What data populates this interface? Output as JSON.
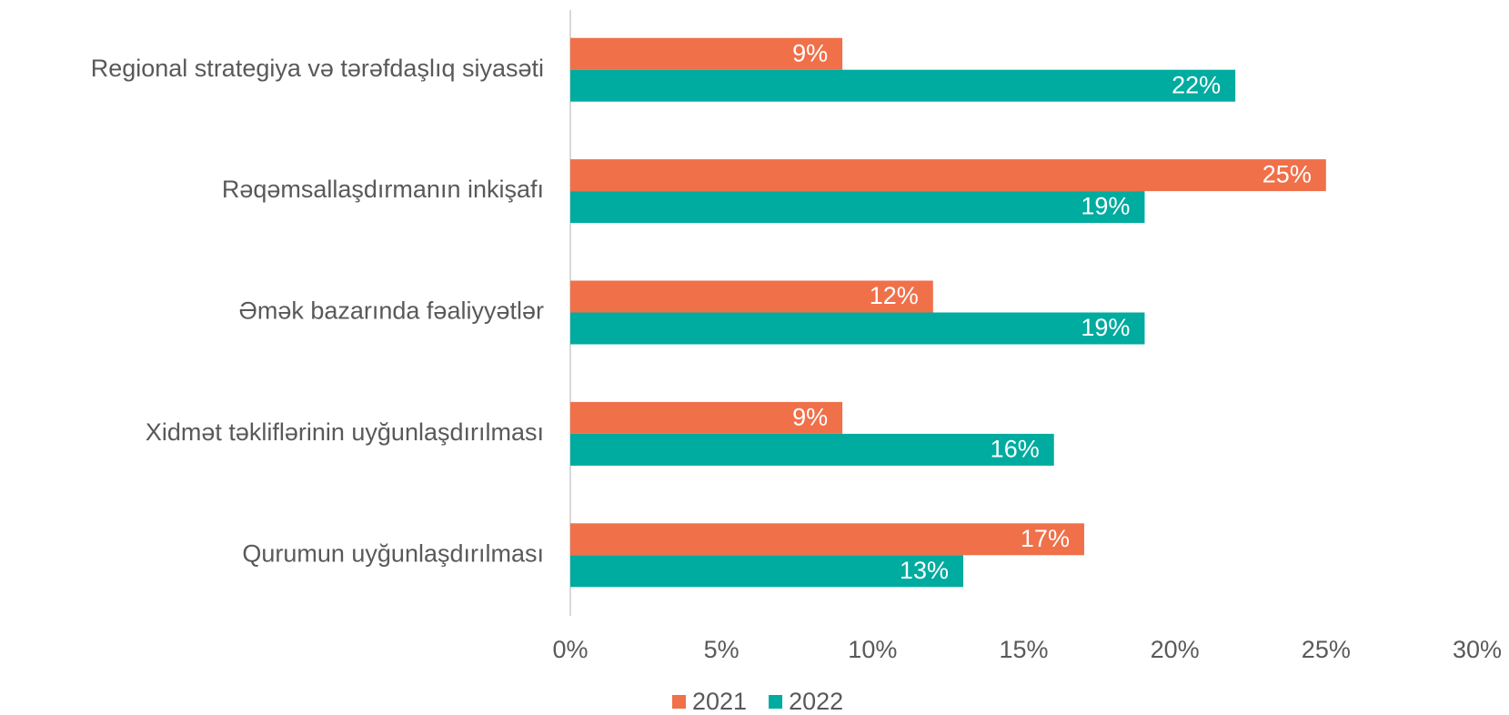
{
  "chart_data": {
    "type": "hbar",
    "categories": [
      "Regional strategiya və tərəfdaşlıq siyasəti",
      "Rəqəmsallaşdırmanın inkişafı",
      "Əmək bazarında fəaliyyətlər",
      "Xidmət təkliflərinin uyğunlaşdırılması",
      "Qurumun uyğunlaşdırılması"
    ],
    "series": [
      {
        "name": "2021",
        "color": "#f0704a",
        "values": [
          9,
          25,
          12,
          9,
          17
        ],
        "value_labels": [
          "9%",
          "25%",
          "12%",
          "9%",
          "17%"
        ]
      },
      {
        "name": "2022",
        "color": "#00ab9f",
        "values": [
          22,
          19,
          19,
          16,
          13
        ],
        "value_labels": [
          "22%",
          "19%",
          "19%",
          "16%",
          "13%"
        ]
      }
    ],
    "xlim": [
      0,
      30
    ],
    "xticks": [
      {
        "value": 0,
        "label": "0%"
      },
      {
        "value": 5,
        "label": "5%"
      },
      {
        "value": 10,
        "label": "10%"
      },
      {
        "value": 15,
        "label": "15%"
      },
      {
        "value": 20,
        "label": "20%"
      },
      {
        "value": 25,
        "label": "25%"
      },
      {
        "value": 30,
        "label": "30%"
      }
    ],
    "grid": false,
    "legend": "bottom"
  }
}
